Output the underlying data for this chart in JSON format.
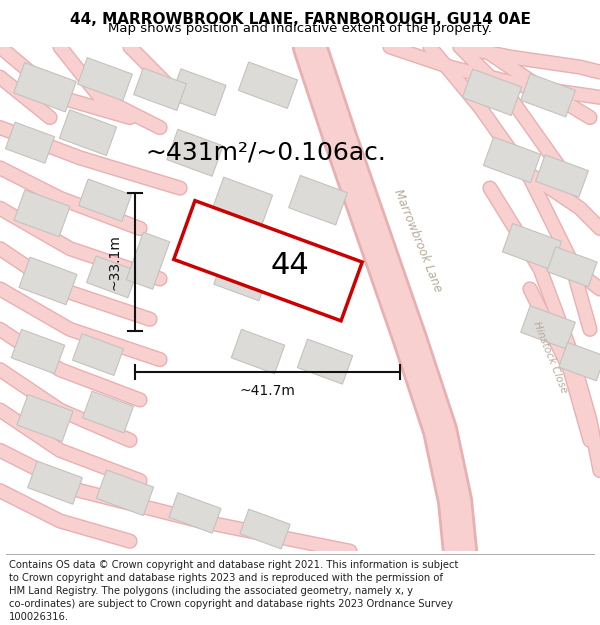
{
  "title_line1": "44, MARROWBROOK LANE, FARNBOROUGH, GU14 0AE",
  "title_line2": "Map shows position and indicative extent of the property.",
  "area_label": "~431m²/~0.106ac.",
  "house_number": "44",
  "width_label": "~41.7m",
  "height_label": "~33.1m",
  "map_bg": "#efeeec",
  "road_color": "#f9d0d0",
  "road_edge_color": "#e8b0b0",
  "building_fill": "#dddbd8",
  "building_stroke": "#c5c2be",
  "plot_stroke": "#cc0000",
  "plot_fill": "#ffffff",
  "street_label_color": "#b8aa9a",
  "street_label1": "Marrowbrook Lane",
  "street_label2": "Hinstock Close",
  "dim_color": "#111111",
  "title_fontsize": 11,
  "subtitle_fontsize": 9.5,
  "footer_fontsize": 7.2,
  "area_fontsize": 18,
  "number_fontsize": 22,
  "dim_fontsize": 10,
  "footer_lines": [
    "Contains OS data © Crown copyright and database right 2021. This information is subject",
    "to Crown copyright and database rights 2023 and is reproduced with the permission of",
    "HM Land Registry. The polygons (including the associated geometry, namely x, y",
    "co-ordinates) are subject to Crown copyright and database rights 2023 Ordnance Survey",
    "100026316."
  ]
}
